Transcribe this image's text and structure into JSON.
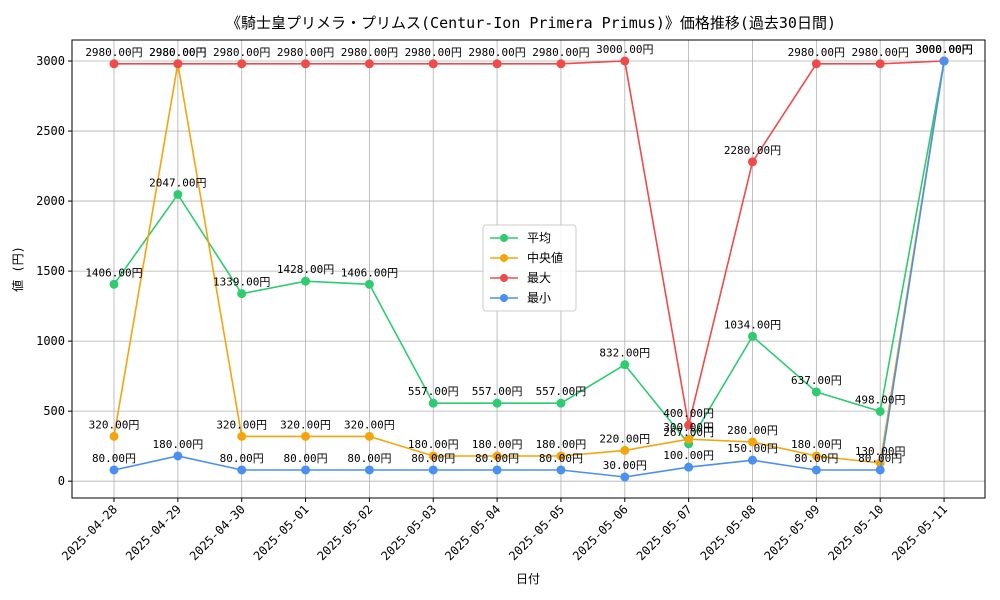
{
  "chart_data": {
    "type": "line",
    "title": "《騎士皇プリメラ・プリムス(Centur-Ion Primera Primus)》価格推移(過去30日間)",
    "xlabel": "日付",
    "ylabel": "値 (円)",
    "ylim": [
      -120,
      3150
    ],
    "yticks": [
      0,
      500,
      1000,
      1500,
      2000,
      2500,
      3000
    ],
    "grid": true,
    "legend_position": "center",
    "categories": [
      "2025-04-28",
      "2025-04-29",
      "2025-04-30",
      "2025-05-01",
      "2025-05-02",
      "2025-05-03",
      "2025-05-04",
      "2025-05-05",
      "2025-05-06",
      "2025-05-07",
      "2025-05-08",
      "2025-05-09",
      "2025-05-10",
      "2025-05-11"
    ],
    "series": [
      {
        "name": "平均",
        "color": "#2ecc71",
        "values": [
          1406,
          2047,
          1339,
          1428,
          1406,
          557,
          557,
          557,
          832,
          267,
          1034,
          637,
          498,
          3000
        ],
        "labels": [
          "1406.00円",
          "2047.00円",
          "1339.00円",
          "1428.00円",
          "1406.00円",
          "557.00円",
          "557.00円",
          "557.00円",
          "832.00円",
          "267.00円",
          "1034.00円",
          "637.00円",
          "498.00円",
          "3000.00円"
        ]
      },
      {
        "name": "中央値",
        "color": "#f5a50b",
        "values": [
          320,
          2980,
          320,
          320,
          320,
          180,
          180,
          180,
          220,
          300,
          280,
          180,
          130,
          3000
        ],
        "labels": [
          "320.00円",
          "2980.00円",
          "320.00円",
          "320.00円",
          "320.00円",
          "180.00円",
          "180.00円",
          "180.00円",
          "220.00円",
          "300.00円",
          "280.00円",
          "180.00円",
          "130.00円",
          "3000.00円"
        ]
      },
      {
        "name": "最大",
        "color": "#ef4b4b",
        "values": [
          2980,
          2980,
          2980,
          2980,
          2980,
          2980,
          2980,
          2980,
          3000,
          400,
          2280,
          2980,
          2980,
          3000
        ],
        "labels": [
          "2980.00円",
          "2980.00円",
          "2980.00円",
          "2980.00円",
          "2980.00円",
          "2980.00円",
          "2980.00円",
          "2980.00円",
          "3000.00円",
          "400.00円",
          "2280.00円",
          "2980.00円",
          "2980.00円",
          "3000.00円"
        ]
      },
      {
        "name": "最小",
        "color": "#4a90f0",
        "values": [
          80,
          180,
          80,
          80,
          80,
          80,
          80,
          80,
          30,
          100,
          150,
          80,
          80,
          3000
        ],
        "labels": [
          "80.00円",
          "180.00円",
          "80.00円",
          "80.00円",
          "80.00円",
          "80.00円",
          "80.00円",
          "80.00円",
          "30.00円",
          "100.00円",
          "150.00円",
          "80.00円",
          "80.00円",
          "3000.00円"
        ]
      }
    ]
  }
}
